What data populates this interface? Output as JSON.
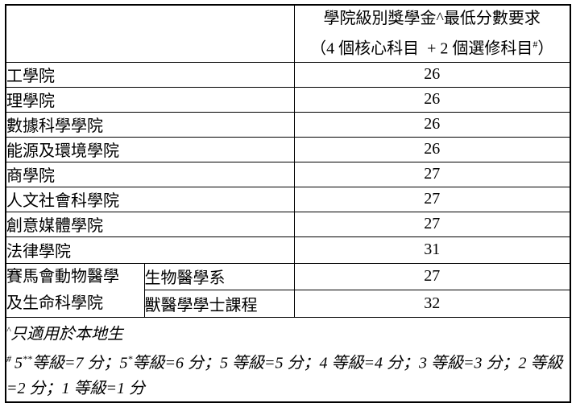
{
  "page": {
    "background_color": "#ffffff",
    "text_color": "#000000",
    "border_color": "#000000"
  },
  "table": {
    "header": {
      "line1": "學院級別獎學金^最低分數要求",
      "line2_pre": "（4 個核心科目  + 2 個選修科目",
      "line2_sup": "#",
      "line2_post": "）"
    },
    "rows": [
      {
        "name": "工學院",
        "score": "26"
      },
      {
        "name": "理學院",
        "score": "26"
      },
      {
        "name": "數據科學學院",
        "score": "26"
      },
      {
        "name": "能源及環境學院",
        "score": "26"
      },
      {
        "name": "商學院",
        "score": "27"
      },
      {
        "name": "人文社會科學院",
        "score": "27"
      },
      {
        "name": "創意媒體學院",
        "score": "27"
      },
      {
        "name": "法律學院",
        "score": "31"
      }
    ],
    "group": {
      "name_line1": "賽馬會動物醫學",
      "name_line2": "及生命科學院",
      "subrows": [
        {
          "name": "生物醫學系",
          "score": "27"
        },
        {
          "name": "獸醫學學士課程",
          "score": "32"
        }
      ]
    },
    "footnotes": {
      "local": {
        "marker": "^",
        "text": "只適用於本地生"
      },
      "grading": {
        "marker": "#",
        "seg1": "5",
        "sup1": "**",
        "seg2": "等級=7 分；5",
        "sup2": "*",
        "seg3": "等級=6 分；5 等級=5 分；4 等級=4 分；3 等級=3 分；2 等級=2 分；1 等級=1 分"
      }
    }
  }
}
